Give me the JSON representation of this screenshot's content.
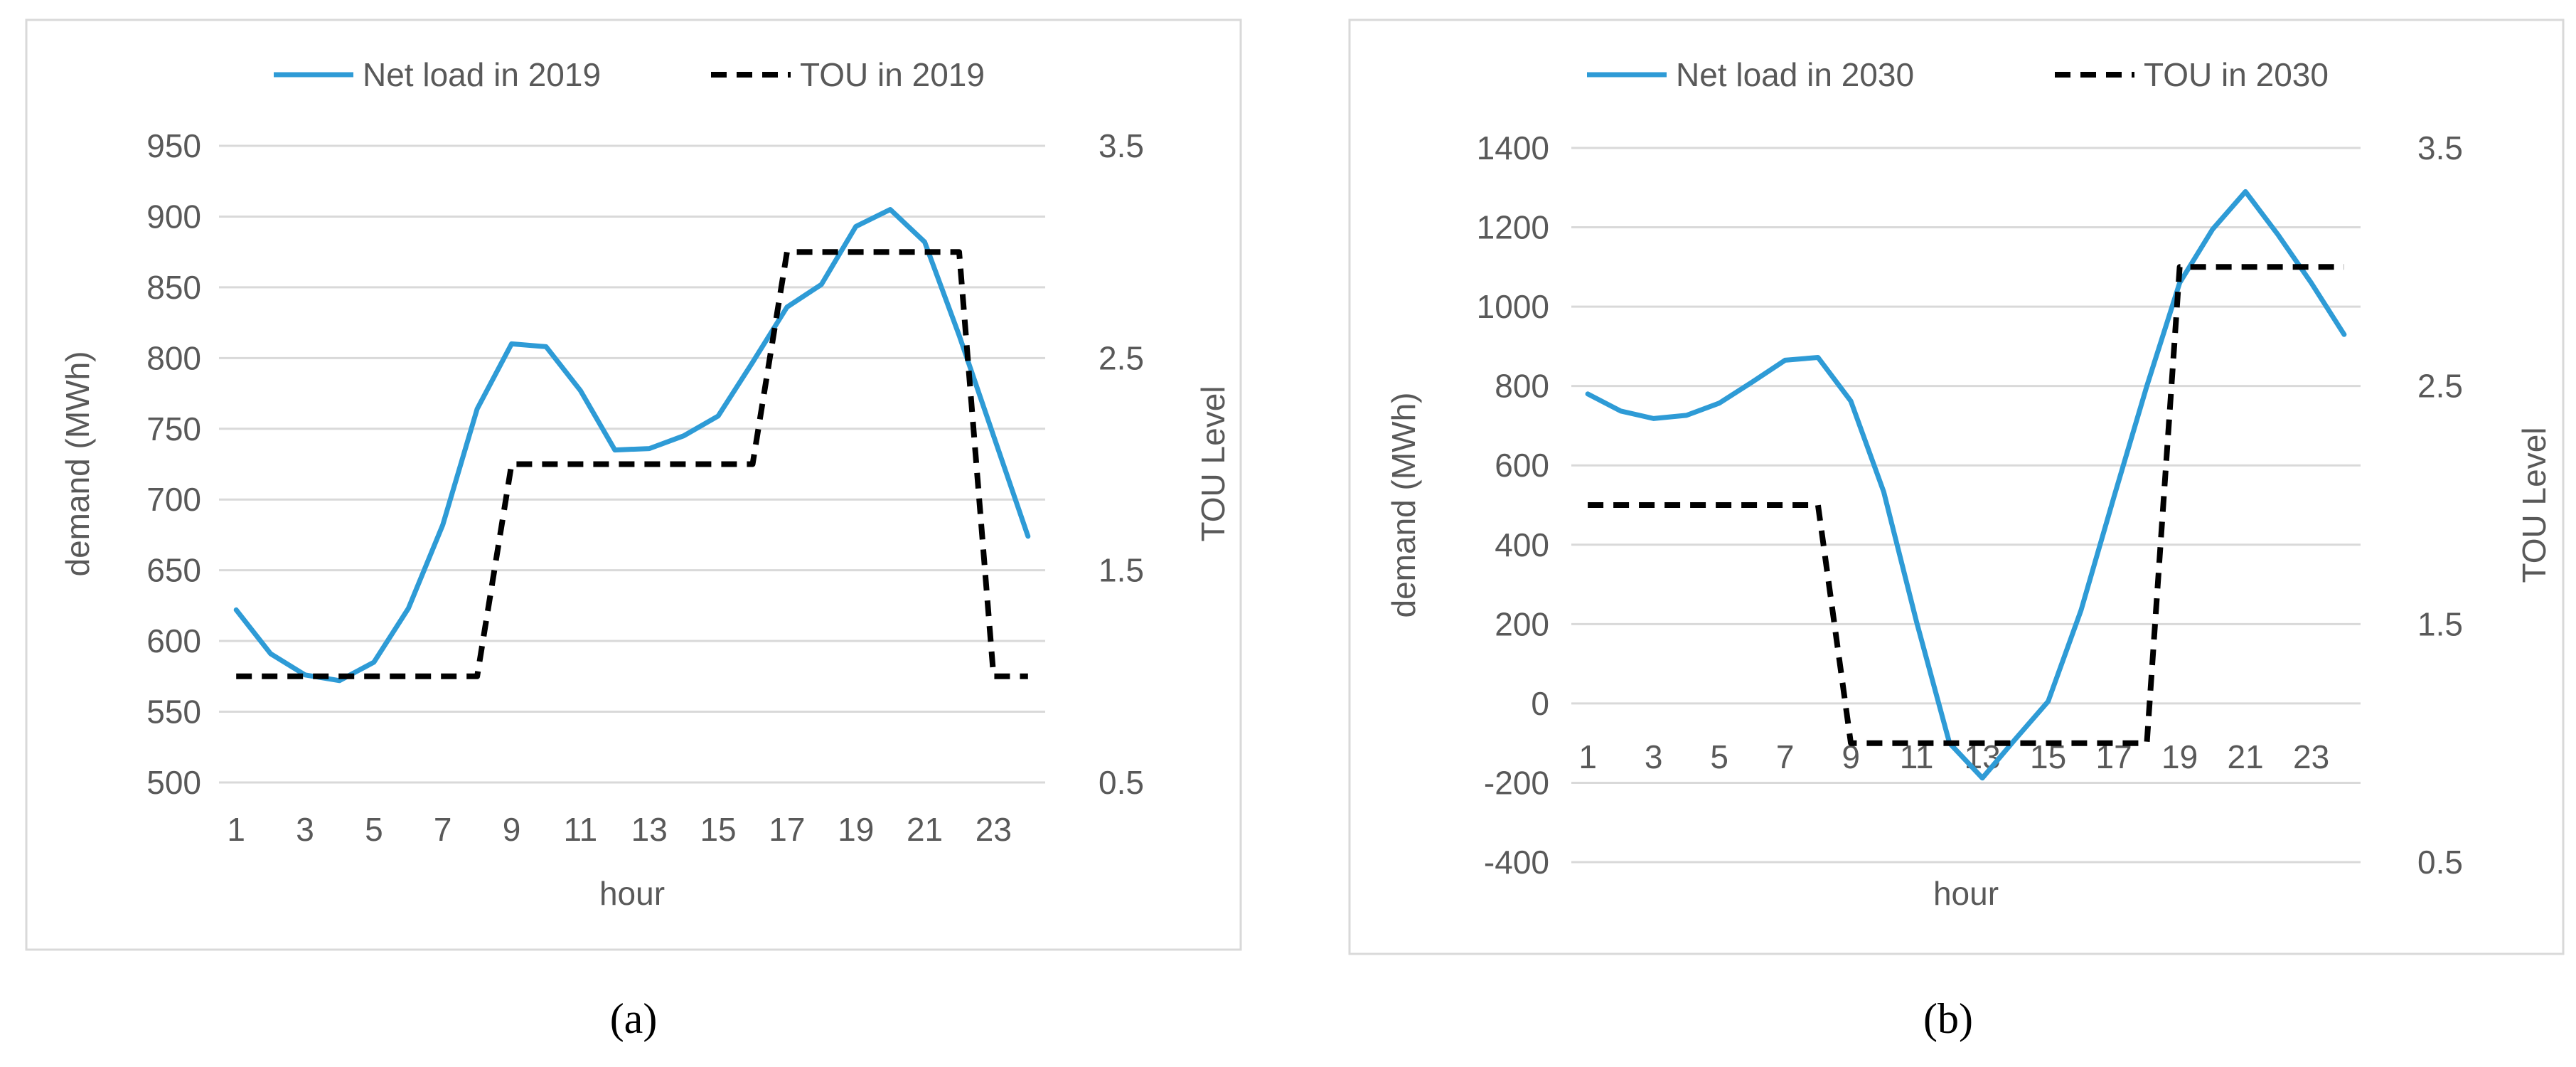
{
  "chart_data": [
    {
      "type": "line",
      "caption": "(a)",
      "xlabel": "hour",
      "ylabel": "demand (MWh)",
      "y2label": "TOU Level",
      "x": [
        1,
        2,
        3,
        4,
        5,
        6,
        7,
        8,
        9,
        10,
        11,
        12,
        13,
        14,
        15,
        16,
        17,
        18,
        19,
        20,
        21,
        22,
        23,
        24
      ],
      "x_tick_labels": [
        "1",
        "3",
        "5",
        "7",
        "9",
        "11",
        "13",
        "15",
        "17",
        "19",
        "21",
        "23"
      ],
      "ylim": [
        500,
        950
      ],
      "y_ticks": [
        "500",
        "550",
        "600",
        "650",
        "700",
        "750",
        "800",
        "850",
        "900",
        "950"
      ],
      "y2lim": [
        0.5,
        3.5
      ],
      "y2_ticks": [
        "0.5",
        "1.5",
        "2.5",
        "3.5"
      ],
      "grid": true,
      "legend_position": "top",
      "series": [
        {
          "name": "Net load in 2019",
          "axis": "left",
          "style": "solid",
          "color": "#2E9BD6",
          "values": [
            622,
            591,
            576,
            572,
            585,
            623,
            682,
            764,
            810,
            808,
            777,
            735,
            736,
            745,
            759,
            797,
            836,
            852,
            893,
            905,
            882,
            816,
            745,
            674
          ]
        },
        {
          "name": "TOU in 2019",
          "axis": "right",
          "style": "dashed",
          "color": "#000000",
          "values": [
            1,
            1,
            1,
            1,
            1,
            1,
            1,
            1,
            2,
            2,
            2,
            2,
            2,
            2,
            2,
            2,
            3,
            3,
            3,
            3,
            3,
            3,
            1,
            1
          ]
        }
      ]
    },
    {
      "type": "line",
      "caption": "(b)",
      "xlabel": "hour",
      "ylabel": "demand (MWh)",
      "y2label": "TOU Level",
      "x": [
        1,
        2,
        3,
        4,
        5,
        6,
        7,
        8,
        9,
        10,
        11,
        12,
        13,
        14,
        15,
        16,
        17,
        18,
        19,
        20,
        21,
        22,
        23,
        24
      ],
      "x_tick_labels": [
        "1",
        "3",
        "5",
        "7",
        "9",
        "11",
        "13",
        "15",
        "17",
        "19",
        "21",
        "23"
      ],
      "ylim": [
        -400,
        1400
      ],
      "y_ticks": [
        "-400",
        "-200",
        "0",
        "200",
        "400",
        "600",
        "800",
        "1000",
        "1200",
        "1400"
      ],
      "y2lim": [
        0.5,
        3.5
      ],
      "y2_ticks": [
        "0.5",
        "1.5",
        "2.5",
        "3.5"
      ],
      "grid": true,
      "legend_position": "top",
      "series": [
        {
          "name": "Net load in 2030",
          "axis": "left",
          "style": "solid",
          "color": "#2E9BD6",
          "values": [
            780,
            737,
            718,
            726,
            757,
            810,
            865,
            872,
            762,
            533,
            205,
            -100,
            -188,
            -90,
            5,
            235,
            520,
            800,
            1060,
            1195,
            1290,
            1180,
            1060,
            930
          ]
        },
        {
          "name": "TOU in 2030",
          "axis": "right",
          "style": "dashed",
          "color": "#000000",
          "values": [
            2,
            2,
            2,
            2,
            2,
            2,
            2,
            2,
            1,
            1,
            1,
            1,
            1,
            1,
            1,
            1,
            1,
            1,
            3,
            3,
            3,
            3,
            3,
            3
          ]
        }
      ]
    }
  ]
}
